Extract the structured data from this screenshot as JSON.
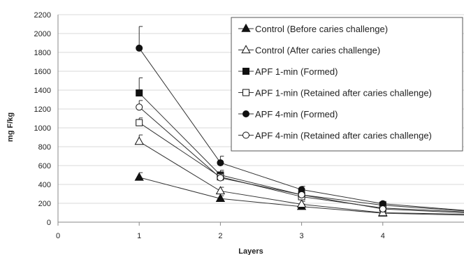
{
  "chart_data": {
    "type": "line",
    "xlabel": "Layers",
    "ylabel": "mg F/kg",
    "xlim": [
      0,
      5
    ],
    "ylim": [
      0,
      2200
    ],
    "x_ticks": [
      0,
      1,
      2,
      3,
      4
    ],
    "y_ticks": [
      0,
      200,
      400,
      600,
      800,
      1000,
      1200,
      1400,
      1600,
      1800,
      2000,
      2200
    ],
    "x": [
      1,
      2,
      3,
      4,
      5
    ],
    "grid": "horizontal",
    "legend": "top-right",
    "series": [
      {
        "name": "Control (Before caries challenge)",
        "marker": "triangle",
        "filled": true,
        "values": [
          475,
          250,
          165,
          95,
          75
        ],
        "errors": [
          50,
          30,
          25,
          15,
          0
        ]
      },
      {
        "name": "Control (After caries challenge)",
        "marker": "triangle",
        "filled": false,
        "values": [
          855,
          330,
          190,
          100,
          85
        ],
        "errors": [
          70,
          40,
          30,
          15,
          0
        ]
      },
      {
        "name": "APF 1-min (Formed)",
        "marker": "square",
        "filled": true,
        "values": [
          1370,
          500,
          290,
          180,
          120
        ],
        "errors": [
          160,
          50,
          30,
          25,
          0
        ]
      },
      {
        "name": "APF 1-min (Retained after caries challenge)",
        "marker": "square",
        "filled": false,
        "values": [
          1055,
          480,
          270,
          150,
          110
        ],
        "errors": [
          50,
          40,
          30,
          20,
          0
        ]
      },
      {
        "name": "APF 4-min (Formed)",
        "marker": "circle",
        "filled": true,
        "values": [
          1845,
          630,
          345,
          195,
          125
        ],
        "errors": [
          230,
          70,
          35,
          25,
          0
        ]
      },
      {
        "name": "APF 4-min (Retained after caries challenge)",
        "marker": "circle",
        "filled": false,
        "values": [
          1220,
          470,
          290,
          140,
          100
        ],
        "errors": [
          70,
          40,
          30,
          20,
          0
        ]
      }
    ]
  }
}
